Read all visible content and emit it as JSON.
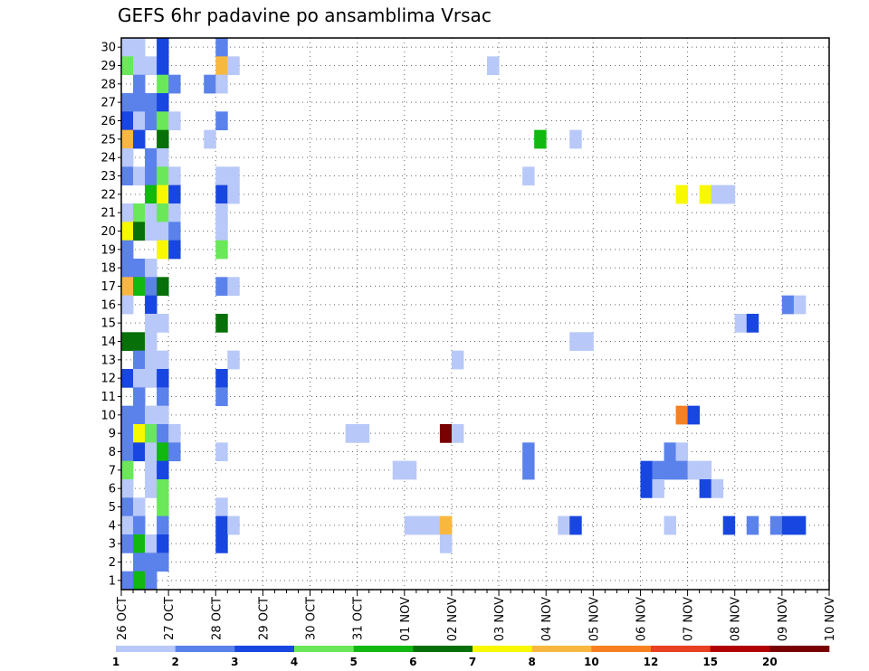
{
  "chart_data": {
    "type": "heatmap",
    "title": "GEFS 6hr padavine po ansamblima Vrsac",
    "xlabel": "",
    "ylabel": "",
    "x_ticks": [
      "26 OCT",
      "27 OCT",
      "28 OCT",
      "29 OCT",
      "30 OCT",
      "31 OCT",
      "01 NOV",
      "02 NOV",
      "03 NOV",
      "04 NOV",
      "05 NOV",
      "06 NOV",
      "07 NOV",
      "08 NOV",
      "09 NOV",
      "10 NOV"
    ],
    "x_steps_per_day": 4,
    "y_range": [
      1,
      30
    ],
    "grid": true,
    "colorbar": {
      "placement": "bottom",
      "colors": [
        "#b8c8f8",
        "#5a82ea",
        "#1846e0",
        "#6ae85a",
        "#10b810",
        "#087008",
        "#f8f800",
        "#f8b840",
        "#f88020",
        "#e84020",
        "#b00000",
        "#780000"
      ],
      "labels": [
        "1",
        "2",
        "3",
        "4",
        "5",
        "6",
        "7",
        "8",
        "10",
        "12",
        "15",
        "20"
      ]
    },
    "cells": [
      {
        "t": 0,
        "m": 30,
        "c": 1
      },
      {
        "t": 1,
        "m": 30,
        "c": 1
      },
      {
        "t": 3,
        "m": 30,
        "c": 3
      },
      {
        "t": 8,
        "m": 30,
        "c": 2
      },
      {
        "t": 0,
        "m": 29,
        "c": 4
      },
      {
        "t": 1,
        "m": 29,
        "c": 1
      },
      {
        "t": 2,
        "m": 29,
        "c": 1
      },
      {
        "t": 3,
        "m": 29,
        "c": 3
      },
      {
        "t": 8,
        "m": 29,
        "c": 8
      },
      {
        "t": 9,
        "m": 29,
        "c": 1
      },
      {
        "t": 31,
        "m": 29,
        "c": 1
      },
      {
        "t": 1,
        "m": 28,
        "c": 2
      },
      {
        "t": 3,
        "m": 28,
        "c": 4
      },
      {
        "t": 4,
        "m": 28,
        "c": 2
      },
      {
        "t": 7,
        "m": 28,
        "c": 2
      },
      {
        "t": 8,
        "m": 28,
        "c": 1
      },
      {
        "t": 0,
        "m": 27,
        "c": 2
      },
      {
        "t": 1,
        "m": 27,
        "c": 2
      },
      {
        "t": 2,
        "m": 27,
        "c": 2
      },
      {
        "t": 3,
        "m": 27,
        "c": 3
      },
      {
        "t": 0,
        "m": 26,
        "c": 3
      },
      {
        "t": 1,
        "m": 26,
        "c": 1
      },
      {
        "t": 2,
        "m": 26,
        "c": 2
      },
      {
        "t": 3,
        "m": 26,
        "c": 4
      },
      {
        "t": 4,
        "m": 26,
        "c": 1
      },
      {
        "t": 8,
        "m": 26,
        "c": 2
      },
      {
        "t": 0,
        "m": 25,
        "c": 8
      },
      {
        "t": 1,
        "m": 25,
        "c": 3
      },
      {
        "t": 3,
        "m": 25,
        "c": 6
      },
      {
        "t": 7,
        "m": 25,
        "c": 1
      },
      {
        "t": 35,
        "m": 25,
        "c": 5
      },
      {
        "t": 38,
        "m": 25,
        "c": 1
      },
      {
        "t": 0,
        "m": 24,
        "c": 1
      },
      {
        "t": 2,
        "m": 24,
        "c": 2
      },
      {
        "t": 3,
        "m": 24,
        "c": 1
      },
      {
        "t": 0,
        "m": 23,
        "c": 2
      },
      {
        "t": 1,
        "m": 23,
        "c": 1
      },
      {
        "t": 2,
        "m": 23,
        "c": 2
      },
      {
        "t": 3,
        "m": 23,
        "c": 4
      },
      {
        "t": 4,
        "m": 23,
        "c": 1
      },
      {
        "t": 8,
        "m": 23,
        "c": 1
      },
      {
        "t": 9,
        "m": 23,
        "c": 1
      },
      {
        "t": 34,
        "m": 23,
        "c": 1
      },
      {
        "t": 2,
        "m": 22,
        "c": 5
      },
      {
        "t": 3,
        "m": 22,
        "c": 7
      },
      {
        "t": 4,
        "m": 22,
        "c": 3
      },
      {
        "t": 8,
        "m": 22,
        "c": 3
      },
      {
        "t": 9,
        "m": 22,
        "c": 1
      },
      {
        "t": 47,
        "m": 22,
        "c": 7
      },
      {
        "t": 49,
        "m": 22,
        "c": 7
      },
      {
        "t": 50,
        "m": 22,
        "c": 1
      },
      {
        "t": 51,
        "m": 22,
        "c": 1
      },
      {
        "t": 0,
        "m": 21,
        "c": 1
      },
      {
        "t": 1,
        "m": 21,
        "c": 4
      },
      {
        "t": 2,
        "m": 21,
        "c": 1
      },
      {
        "t": 3,
        "m": 21,
        "c": 4
      },
      {
        "t": 4,
        "m": 21,
        "c": 1
      },
      {
        "t": 8,
        "m": 21,
        "c": 1
      },
      {
        "t": 0,
        "m": 20,
        "c": 7
      },
      {
        "t": 1,
        "m": 20,
        "c": 6
      },
      {
        "t": 2,
        "m": 20,
        "c": 1
      },
      {
        "t": 3,
        "m": 20,
        "c": 1
      },
      {
        "t": 4,
        "m": 20,
        "c": 2
      },
      {
        "t": 8,
        "m": 20,
        "c": 1
      },
      {
        "t": 0,
        "m": 19,
        "c": 2
      },
      {
        "t": 3,
        "m": 19,
        "c": 7
      },
      {
        "t": 4,
        "m": 19,
        "c": 3
      },
      {
        "t": 8,
        "m": 19,
        "c": 4
      },
      {
        "t": 0,
        "m": 18,
        "c": 2
      },
      {
        "t": 1,
        "m": 18,
        "c": 2
      },
      {
        "t": 2,
        "m": 18,
        "c": 1
      },
      {
        "t": 0,
        "m": 17,
        "c": 8
      },
      {
        "t": 1,
        "m": 17,
        "c": 5
      },
      {
        "t": 2,
        "m": 17,
        "c": 2
      },
      {
        "t": 3,
        "m": 17,
        "c": 6
      },
      {
        "t": 8,
        "m": 17,
        "c": 2
      },
      {
        "t": 9,
        "m": 17,
        "c": 1
      },
      {
        "t": 0,
        "m": 16,
        "c": 1
      },
      {
        "t": 2,
        "m": 16,
        "c": 3
      },
      {
        "t": 56,
        "m": 16,
        "c": 2
      },
      {
        "t": 57,
        "m": 16,
        "c": 1
      },
      {
        "t": 2,
        "m": 15,
        "c": 1
      },
      {
        "t": 3,
        "m": 15,
        "c": 1
      },
      {
        "t": 8,
        "m": 15,
        "c": 6
      },
      {
        "t": 52,
        "m": 15,
        "c": 1
      },
      {
        "t": 53,
        "m": 15,
        "c": 3
      },
      {
        "t": 0,
        "m": 14,
        "c": 6
      },
      {
        "t": 1,
        "m": 14,
        "c": 6
      },
      {
        "t": 2,
        "m": 14,
        "c": 1
      },
      {
        "t": 38,
        "m": 14,
        "c": 1
      },
      {
        "t": 39,
        "m": 14,
        "c": 1
      },
      {
        "t": 1,
        "m": 13,
        "c": 2
      },
      {
        "t": 2,
        "m": 13,
        "c": 1
      },
      {
        "t": 3,
        "m": 13,
        "c": 1
      },
      {
        "t": 9,
        "m": 13,
        "c": 1
      },
      {
        "t": 28,
        "m": 13,
        "c": 1
      },
      {
        "t": 0,
        "m": 12,
        "c": 3
      },
      {
        "t": 1,
        "m": 12,
        "c": 1
      },
      {
        "t": 2,
        "m": 12,
        "c": 1
      },
      {
        "t": 3,
        "m": 12,
        "c": 3
      },
      {
        "t": 8,
        "m": 12,
        "c": 3
      },
      {
        "t": 1,
        "m": 11,
        "c": 2
      },
      {
        "t": 3,
        "m": 11,
        "c": 2
      },
      {
        "t": 8,
        "m": 11,
        "c": 2
      },
      {
        "t": 0,
        "m": 10,
        "c": 2
      },
      {
        "t": 1,
        "m": 10,
        "c": 2
      },
      {
        "t": 2,
        "m": 10,
        "c": 1
      },
      {
        "t": 3,
        "m": 10,
        "c": 1
      },
      {
        "t": 47,
        "m": 10,
        "c": 9
      },
      {
        "t": 48,
        "m": 10,
        "c": 3
      },
      {
        "t": 0,
        "m": 9,
        "c": 2
      },
      {
        "t": 1,
        "m": 9,
        "c": 7
      },
      {
        "t": 2,
        "m": 9,
        "c": 4
      },
      {
        "t": 3,
        "m": 9,
        "c": 2
      },
      {
        "t": 4,
        "m": 9,
        "c": 1
      },
      {
        "t": 19,
        "m": 9,
        "c": 1
      },
      {
        "t": 20,
        "m": 9,
        "c": 1
      },
      {
        "t": 27,
        "m": 9,
        "c": 12
      },
      {
        "t": 28,
        "m": 9,
        "c": 1
      },
      {
        "t": 0,
        "m": 8,
        "c": 2
      },
      {
        "t": 1,
        "m": 8,
        "c": 3
      },
      {
        "t": 2,
        "m": 8,
        "c": 1
      },
      {
        "t": 3,
        "m": 8,
        "c": 5
      },
      {
        "t": 4,
        "m": 8,
        "c": 2
      },
      {
        "t": 8,
        "m": 8,
        "c": 1
      },
      {
        "t": 34,
        "m": 8,
        "c": 2
      },
      {
        "t": 46,
        "m": 8,
        "c": 2
      },
      {
        "t": 47,
        "m": 8,
        "c": 1
      },
      {
        "t": 0,
        "m": 7,
        "c": 4
      },
      {
        "t": 2,
        "m": 7,
        "c": 1
      },
      {
        "t": 3,
        "m": 7,
        "c": 3
      },
      {
        "t": 23,
        "m": 7,
        "c": 1
      },
      {
        "t": 24,
        "m": 7,
        "c": 1
      },
      {
        "t": 34,
        "m": 7,
        "c": 2
      },
      {
        "t": 44,
        "m": 7,
        "c": 3
      },
      {
        "t": 45,
        "m": 7,
        "c": 2
      },
      {
        "t": 46,
        "m": 7,
        "c": 2
      },
      {
        "t": 47,
        "m": 7,
        "c": 2
      },
      {
        "t": 48,
        "m": 7,
        "c": 1
      },
      {
        "t": 49,
        "m": 7,
        "c": 1
      },
      {
        "t": 0,
        "m": 6,
        "c": 1
      },
      {
        "t": 2,
        "m": 6,
        "c": 1
      },
      {
        "t": 3,
        "m": 6,
        "c": 4
      },
      {
        "t": 44,
        "m": 6,
        "c": 3
      },
      {
        "t": 45,
        "m": 6,
        "c": 1
      },
      {
        "t": 49,
        "m": 6,
        "c": 3
      },
      {
        "t": 50,
        "m": 6,
        "c": 1
      },
      {
        "t": 0,
        "m": 5,
        "c": 2
      },
      {
        "t": 1,
        "m": 5,
        "c": 1
      },
      {
        "t": 3,
        "m": 5,
        "c": 4
      },
      {
        "t": 8,
        "m": 5,
        "c": 1
      },
      {
        "t": 0,
        "m": 4,
        "c": 1
      },
      {
        "t": 1,
        "m": 4,
        "c": 2
      },
      {
        "t": 3,
        "m": 4,
        "c": 2
      },
      {
        "t": 8,
        "m": 4,
        "c": 3
      },
      {
        "t": 9,
        "m": 4,
        "c": 1
      },
      {
        "t": 24,
        "m": 4,
        "c": 1
      },
      {
        "t": 25,
        "m": 4,
        "c": 1
      },
      {
        "t": 26,
        "m": 4,
        "c": 1
      },
      {
        "t": 27,
        "m": 4,
        "c": 8
      },
      {
        "t": 37,
        "m": 4,
        "c": 1
      },
      {
        "t": 38,
        "m": 4,
        "c": 3
      },
      {
        "t": 46,
        "m": 4,
        "c": 1
      },
      {
        "t": 51,
        "m": 4,
        "c": 3
      },
      {
        "t": 53,
        "m": 4,
        "c": 2
      },
      {
        "t": 55,
        "m": 4,
        "c": 2
      },
      {
        "t": 56,
        "m": 4,
        "c": 3
      },
      {
        "t": 57,
        "m": 4,
        "c": 3
      },
      {
        "t": 0,
        "m": 3,
        "c": 2
      },
      {
        "t": 1,
        "m": 3,
        "c": 5
      },
      {
        "t": 2,
        "m": 3,
        "c": 1
      },
      {
        "t": 3,
        "m": 3,
        "c": 3
      },
      {
        "t": 8,
        "m": 3,
        "c": 3
      },
      {
        "t": 27,
        "m": 3,
        "c": 1
      },
      {
        "t": 1,
        "m": 2,
        "c": 2
      },
      {
        "t": 2,
        "m": 2,
        "c": 2
      },
      {
        "t": 3,
        "m": 2,
        "c": 2
      },
      {
        "t": 0,
        "m": 1,
        "c": 2
      },
      {
        "t": 1,
        "m": 1,
        "c": 5
      },
      {
        "t": 2,
        "m": 1,
        "c": 2
      }
    ]
  }
}
